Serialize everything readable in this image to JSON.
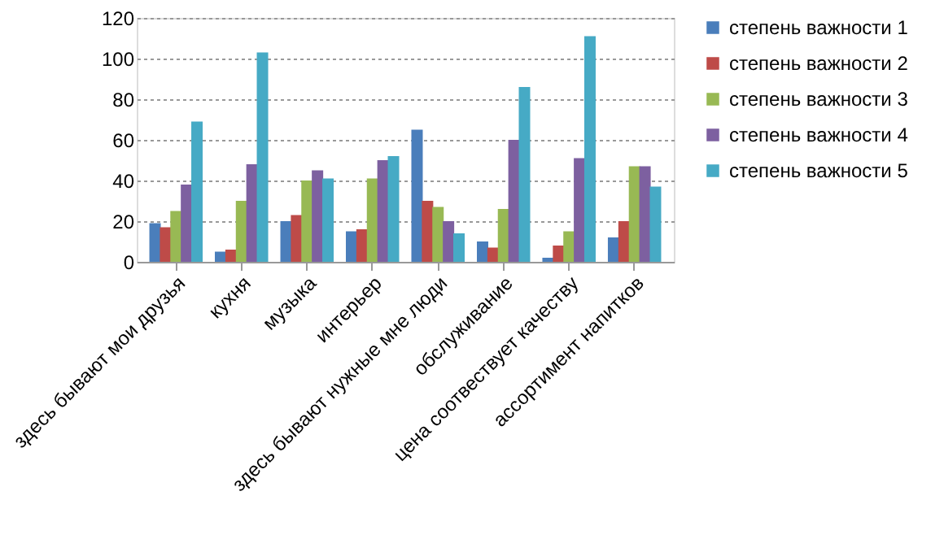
{
  "chart_data": {
    "type": "bar",
    "categories": [
      "здесь бывают мои друзья",
      "кухня",
      "музыка",
      "интерьер",
      "здесь бывают нужные мне люди",
      "обслуживание",
      "цена соотвествует качеству",
      "ассортимент напитков"
    ],
    "series": [
      {
        "name": "степень важности 1",
        "color": "#4a7ebb",
        "values": [
          19,
          5,
          20,
          15,
          65,
          10,
          2,
          12
        ]
      },
      {
        "name": "степень важности 2",
        "color": "#be4b48",
        "values": [
          17,
          6,
          23,
          16,
          30,
          7,
          8,
          20
        ]
      },
      {
        "name": "степень важности 3",
        "color": "#98b954",
        "values": [
          25,
          30,
          40,
          41,
          27,
          26,
          15,
          47
        ]
      },
      {
        "name": "степень важности 4",
        "color": "#7d60a0",
        "values": [
          38,
          48,
          45,
          50,
          20,
          60,
          51,
          47
        ]
      },
      {
        "name": "степень важности 5",
        "color": "#46aac5",
        "values": [
          69,
          103,
          41,
          52,
          14,
          86,
          111,
          37
        ]
      }
    ],
    "ylim": [
      0,
      120
    ],
    "yticks": [
      0,
      20,
      40,
      60,
      80,
      100,
      120
    ],
    "grid": "y",
    "legend": "right"
  }
}
